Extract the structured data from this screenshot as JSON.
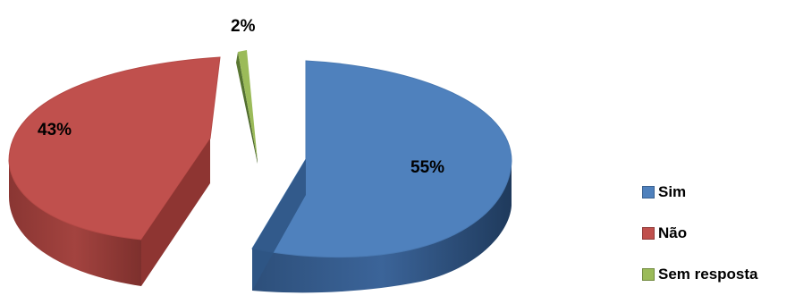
{
  "chart_data": {
    "type": "pie",
    "title": "",
    "categories": [
      "Sim",
      "Não",
      "Sem resposta"
    ],
    "values": [
      55,
      43,
      2
    ],
    "labels": [
      "55%",
      "43%",
      "2%"
    ],
    "colors": [
      "#4F81BD",
      "#C0504D",
      "#9BBB59"
    ],
    "legend_position": "right",
    "style": "3d-exploded"
  }
}
